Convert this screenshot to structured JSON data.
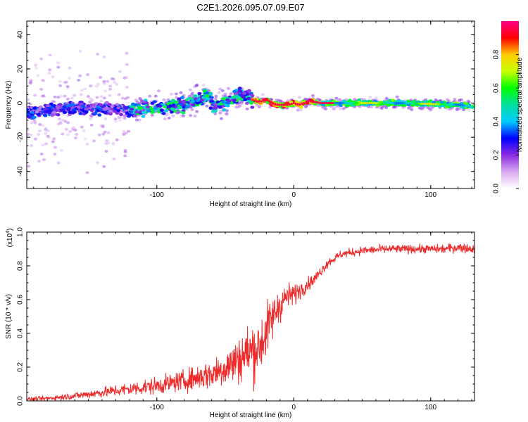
{
  "title": "C2E1.2026.095.07.09.E07",
  "chart_data": [
    {
      "type": "heatmap",
      "name": "spectrogram",
      "xlabel": "Height of straight line (km)",
      "ylabel": "Frequency (Hz)",
      "xlim": [
        -195,
        132
      ],
      "ylim": [
        -50,
        48
      ],
      "xticks": [
        -100,
        0,
        100
      ],
      "xtick_labels": [
        "-100",
        "0",
        "100"
      ],
      "yticks": [
        -40,
        -20,
        0,
        20,
        40
      ],
      "ytick_labels": [
        "-40",
        "-20",
        "0",
        "20",
        "40"
      ],
      "ridge": {
        "x": [
          -195,
          -180,
          -160,
          -140,
          -120,
          -100,
          -80,
          -70,
          -62,
          -58,
          -50,
          -40,
          -34,
          -28,
          -24,
          -20,
          -16,
          -12,
          -8,
          -4,
          0,
          4,
          8,
          12,
          20,
          40,
          80,
          120,
          132
        ],
        "freq": [
          -5,
          -4,
          -3,
          -3,
          -4,
          -3,
          -1,
          2,
          5,
          -2,
          0,
          5,
          4,
          1,
          1,
          2,
          0,
          -1,
          -1,
          -1,
          0,
          -1,
          0,
          1,
          0,
          0,
          0,
          -1,
          -2
        ]
      },
      "colorbar": {
        "label": "Normalized spectral amplitude",
        "range": [
          0,
          1
        ],
        "ticks": [
          0.0,
          0.2,
          0.4,
          0.6,
          0.8
        ],
        "tick_labels": [
          "0.0",
          "0.2",
          "0.4",
          "0.6",
          "0.8"
        ],
        "colors": [
          "#ffffff",
          "#d9a8f0",
          "#8a2be2",
          "#0000ff",
          "#00ccff",
          "#00e0a0",
          "#00ff00",
          "#c8ff00",
          "#ffcc00",
          "#ff0000",
          "#ff0088"
        ]
      }
    },
    {
      "type": "line",
      "name": "snr",
      "xlabel": "Height of straight line (km)",
      "ylabel": "SNR (10 * v/v)",
      "scale_label": "(x10",
      "scale_exp": "4",
      "scale_close": ")",
      "xlim": [
        -195,
        132
      ],
      "ylim": [
        0,
        1.0
      ],
      "xticks": [
        -100,
        0,
        100
      ],
      "xtick_labels": [
        "-100",
        "0",
        "100"
      ],
      "yticks": [
        0.0,
        0.2,
        0.4,
        0.6,
        0.8,
        1.0
      ],
      "ytick_labels": [
        "0.0",
        "0.2",
        "0.4",
        "0.6",
        "0.8",
        "1.0"
      ],
      "line_color": "#ee2a2a",
      "trend": {
        "x": [
          -195,
          -180,
          -160,
          -140,
          -120,
          -100,
          -80,
          -60,
          -45,
          -35,
          -25,
          -18,
          -12,
          -5,
          0,
          5,
          15,
          25,
          35,
          50,
          70,
          90,
          110,
          120,
          132
        ],
        "y": [
          0.01,
          0.015,
          0.03,
          0.05,
          0.07,
          0.09,
          0.12,
          0.16,
          0.22,
          0.28,
          0.32,
          0.45,
          0.55,
          0.62,
          0.63,
          0.66,
          0.72,
          0.82,
          0.87,
          0.89,
          0.9,
          0.9,
          0.9,
          0.91,
          0.9
        ]
      },
      "spread": {
        "x": [
          -195,
          -160,
          -120,
          -80,
          -60,
          -40,
          -30,
          -20,
          -10,
          0,
          10,
          20,
          30,
          60,
          100,
          132
        ],
        "y": [
          0.01,
          0.02,
          0.04,
          0.06,
          0.09,
          0.14,
          0.18,
          0.16,
          0.1,
          0.06,
          0.04,
          0.03,
          0.025,
          0.025,
          0.025,
          0.03
        ]
      }
    }
  ]
}
